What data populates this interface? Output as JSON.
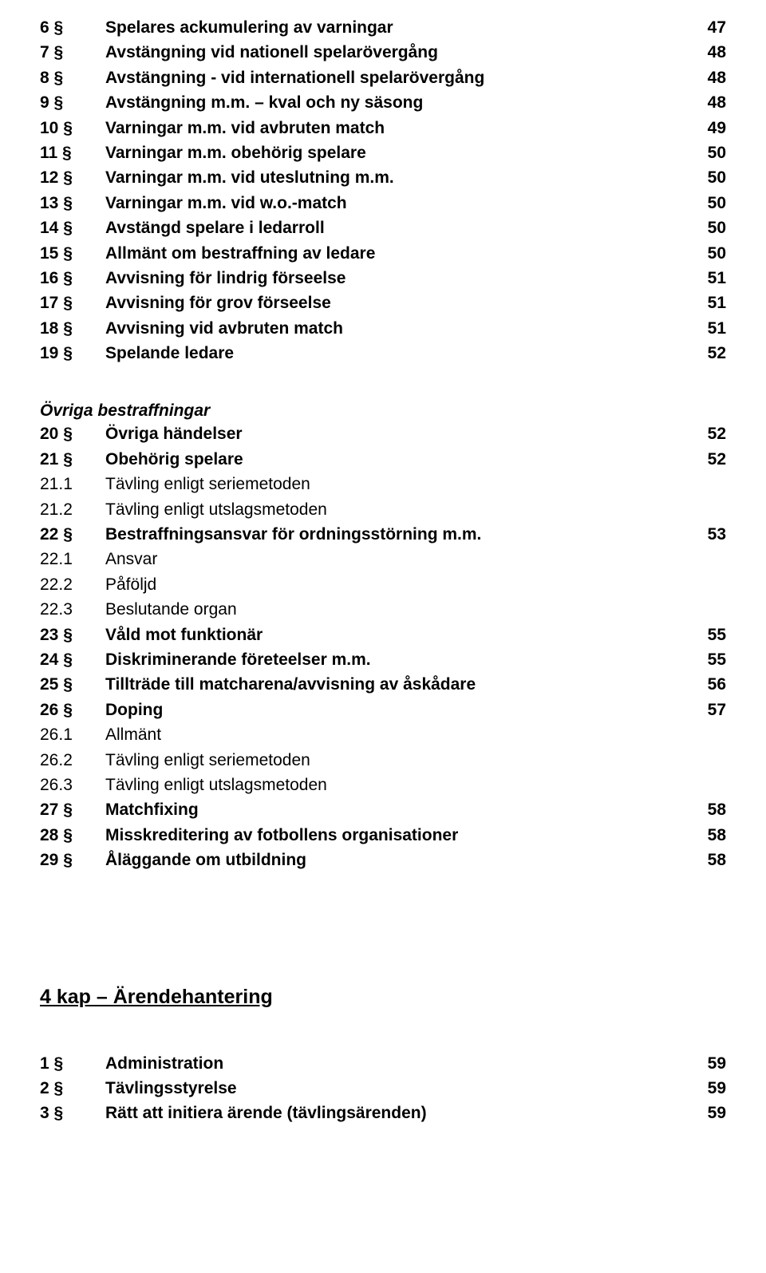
{
  "toc_main": [
    {
      "num": "6 §",
      "bold": true,
      "title": "Spelares ackumulering av varningar",
      "page": "47"
    },
    {
      "num": "7 §",
      "bold": true,
      "title": "Avstängning vid nationell spelarövergång",
      "page": "48"
    },
    {
      "num": "8 §",
      "bold": true,
      "title": "Avstängning - vid internationell spelarövergång",
      "page": "48"
    },
    {
      "num": "9 §",
      "bold": true,
      "title": "Avstängning m.m. – kval och ny säsong",
      "page": "48"
    },
    {
      "num": "10 §",
      "bold": true,
      "title": "Varningar m.m. vid avbruten match",
      "page": "49"
    },
    {
      "num": "11 §",
      "bold": true,
      "title": "Varningar m.m. obehörig spelare",
      "page": "50"
    },
    {
      "num": "12 §",
      "bold": true,
      "title": "Varningar m.m. vid uteslutning m.m.",
      "page": "50"
    },
    {
      "num": "13 §",
      "bold": true,
      "title": "Varningar m.m. vid w.o.-match",
      "page": "50"
    },
    {
      "num": "14 §",
      "bold": true,
      "title": "Avstängd spelare i ledarroll",
      "page": "50"
    },
    {
      "num": "15 §",
      "bold": true,
      "title": "Allmänt om bestraffning av ledare",
      "page": "50"
    },
    {
      "num": "16 §",
      "bold": true,
      "title": "Avvisning för lindrig förseelse",
      "page": "51"
    },
    {
      "num": "17 §",
      "bold": true,
      "title": "Avvisning för grov förseelse",
      "page": "51"
    },
    {
      "num": "18 §",
      "bold": true,
      "title": "Avvisning vid avbruten match",
      "page": "51"
    },
    {
      "num": "19 §",
      "bold": true,
      "title": "Spelande ledare",
      "page": "52"
    }
  ],
  "subheading_ovriga": "Övriga bestraffningar",
  "toc_ovriga": [
    {
      "num": "20 §",
      "bold": true,
      "title": "Övriga händelser",
      "page": "52"
    },
    {
      "num": "21 §",
      "bold": true,
      "title": "Obehörig spelare",
      "page": "52"
    },
    {
      "num": "21.1",
      "bold": false,
      "title": "Tävling enligt seriemetoden",
      "page": ""
    },
    {
      "num": "21.2",
      "bold": false,
      "title": "Tävling enligt utslagsmetoden",
      "page": ""
    },
    {
      "num": "22 §",
      "bold": true,
      "title": "Bestraffningsansvar för ordningsstörning m.m.",
      "page": "53"
    },
    {
      "num": "22.1",
      "bold": false,
      "title": "Ansvar",
      "page": ""
    },
    {
      "num": "22.2",
      "bold": false,
      "title": "Påföljd",
      "page": ""
    },
    {
      "num": "22.3",
      "bold": false,
      "title": "Beslutande organ",
      "page": ""
    },
    {
      "num": "23 §",
      "bold": true,
      "title": "Våld mot funktionär",
      "page": "55"
    },
    {
      "num": "24 §",
      "bold": true,
      "title": "Diskriminerande företeelser m.m.",
      "page": "55"
    },
    {
      "num": "25 §",
      "bold": true,
      "title": "Tillträde till matcharena/avvisning av åskådare",
      "page": "56"
    },
    {
      "num": "26 §",
      "bold": true,
      "title": "Doping",
      "page": "57"
    },
    {
      "num": "26.1",
      "bold": false,
      "title": "Allmänt",
      "page": ""
    },
    {
      "num": "26.2",
      "bold": false,
      "title": "Tävling enligt seriemetoden",
      "page": ""
    },
    {
      "num": "26.3",
      "bold": false,
      "title": "Tävling enligt utslagsmetoden",
      "page": ""
    },
    {
      "num": "27 §",
      "bold": true,
      "title": "Matchfixing",
      "page": "58"
    },
    {
      "num": "28 §",
      "bold": true,
      "title": "Misskreditering av fotbollens organisationer",
      "page": "58"
    },
    {
      "num": "29 §",
      "bold": true,
      "title": "Åläggande om utbildning",
      "page": "58"
    }
  ],
  "chapter4_heading": "4 kap – Ärendehantering",
  "toc_ch4": [
    {
      "num": "1 §",
      "bold": true,
      "title": "Administration",
      "page": "59"
    },
    {
      "num": "2 §",
      "bold": true,
      "title": "Tävlingsstyrelse",
      "page": "59"
    },
    {
      "num": "3 §",
      "bold": true,
      "title": "Rätt att initiera ärende (tävlingsärenden)",
      "page": "59"
    }
  ]
}
